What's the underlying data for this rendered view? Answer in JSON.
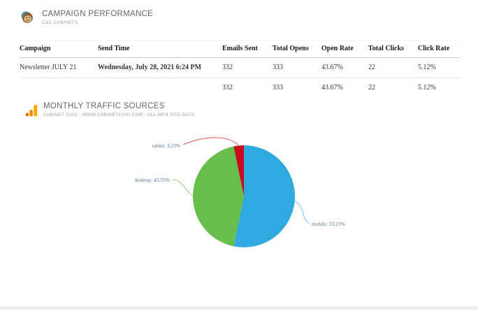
{
  "sections": {
    "campaign": {
      "title": "CAMPAIGN PERFORMANCE",
      "subtitle": "C&C CABINETS",
      "icon": "mailchimp-icon"
    },
    "traffic": {
      "title": "MONTHLY TRAFFIC SOURCES",
      "subtitle": "CABINET CHIC - WWW.CABINETCHIC.COM - ALL WEB SITE DATA",
      "icon": "google-analytics-icon"
    }
  },
  "table": {
    "headers": [
      "Campaign",
      "Send Time",
      "Emails Sent",
      "Total Opens",
      "Open Rate",
      "Total Clicks",
      "Click Rate"
    ],
    "rows": [
      {
        "campaign": "Newsletter JULY 21",
        "send_time": "Wednesday, July 28, 2021 6:24 PM",
        "emails_sent": "332",
        "total_opens": "333",
        "open_rate": "43.67%",
        "total_clicks": "22",
        "click_rate": "5.12%"
      }
    ],
    "totals": {
      "emails_sent": "332",
      "total_opens": "333",
      "open_rate": "43.67%",
      "total_clicks": "22",
      "click_rate": "5.12%"
    }
  },
  "chart_data": {
    "type": "pie",
    "title": "MONTHLY TRAFFIC SOURCES",
    "start_angle": "top",
    "direction": "clockwise",
    "legend_position": "callout-labels",
    "label_text_color": "#53718e",
    "slices": [
      {
        "label": "mobile",
        "value": 53.23,
        "display": "mobile: 53.23%",
        "color": "#30a9e0",
        "line_color": "#82c8ec"
      },
      {
        "label": "desktop",
        "value": 43.55,
        "display": "desktop: 43.55%",
        "color": "#66bf4a",
        "line_color": "#98d47e"
      },
      {
        "label": "tablet",
        "value": 3.23,
        "display": "tablet: 3.23%",
        "color": "#c60c1c",
        "line_color": "#e25f63"
      }
    ]
  }
}
